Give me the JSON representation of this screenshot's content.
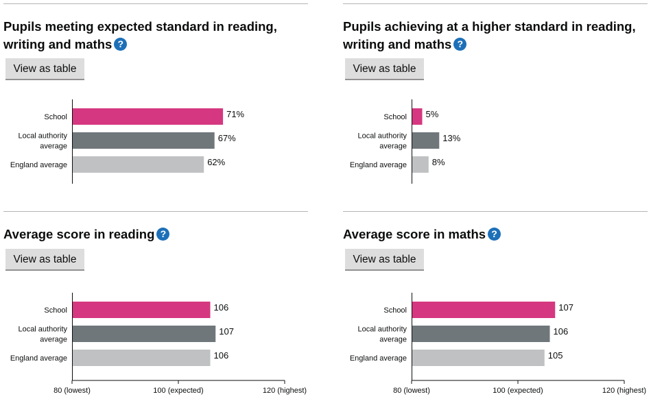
{
  "panels": [
    {
      "title": "Pupils meeting expected standard in reading, writing and maths",
      "help_label": "?",
      "button_label": "View as table",
      "chart_data": {
        "type": "bar",
        "orientation": "horizontal",
        "categories": [
          "School",
          "Local authority average",
          "England average"
        ],
        "category_lines": [
          [
            "School"
          ],
          [
            "Local authority",
            "average"
          ],
          [
            "England average"
          ]
        ],
        "values": [
          71,
          67,
          62
        ],
        "value_labels": [
          "71%",
          "67%",
          "62%"
        ],
        "xlim": [
          0,
          100
        ],
        "tick_labels": [],
        "colors": [
          "#d53880",
          "#6f777b",
          "#bfc1c3"
        ]
      }
    },
    {
      "title": "Pupils achieving at a higher standard in reading, writing and maths",
      "help_label": "?",
      "button_label": "View as table",
      "chart_data": {
        "type": "bar",
        "orientation": "horizontal",
        "categories": [
          "School",
          "Local authority average",
          "England average"
        ],
        "category_lines": [
          [
            "School"
          ],
          [
            "Local authority",
            "average"
          ],
          [
            "England average"
          ]
        ],
        "values": [
          5,
          13,
          8
        ],
        "value_labels": [
          "5%",
          "13%",
          "8%"
        ],
        "xlim": [
          0,
          100
        ],
        "tick_labels": [],
        "colors": [
          "#d53880",
          "#6f777b",
          "#bfc1c3"
        ]
      }
    },
    {
      "title": "Average score in reading",
      "help_label": "?",
      "button_label": "View as table",
      "chart_data": {
        "type": "bar",
        "orientation": "horizontal",
        "categories": [
          "School",
          "Local authority average",
          "England average"
        ],
        "category_lines": [
          [
            "School"
          ],
          [
            "Local authority",
            "average"
          ],
          [
            "England average"
          ]
        ],
        "values": [
          106,
          107,
          106
        ],
        "value_labels": [
          "106",
          "107",
          "106"
        ],
        "xlim": [
          80,
          120
        ],
        "ticks": [
          80,
          100,
          120
        ],
        "tick_labels": [
          "80 (lowest)",
          "100 (expected)",
          "120 (highest)"
        ],
        "colors": [
          "#d53880",
          "#6f777b",
          "#bfc1c3"
        ]
      }
    },
    {
      "title": "Average score in maths",
      "help_label": "?",
      "button_label": "View as table",
      "chart_data": {
        "type": "bar",
        "orientation": "horizontal",
        "categories": [
          "School",
          "Local authority average",
          "England average"
        ],
        "category_lines": [
          [
            "School"
          ],
          [
            "Local authority",
            "average"
          ],
          [
            "England average"
          ]
        ],
        "values": [
          107,
          106,
          105
        ],
        "value_labels": [
          "107",
          "106",
          "105"
        ],
        "xlim": [
          80,
          120
        ],
        "ticks": [
          80,
          100,
          120
        ],
        "tick_labels": [
          "80 (lowest)",
          "100 (expected)",
          "120 (highest)"
        ],
        "colors": [
          "#d53880",
          "#6f777b",
          "#bfc1c3"
        ]
      }
    }
  ]
}
